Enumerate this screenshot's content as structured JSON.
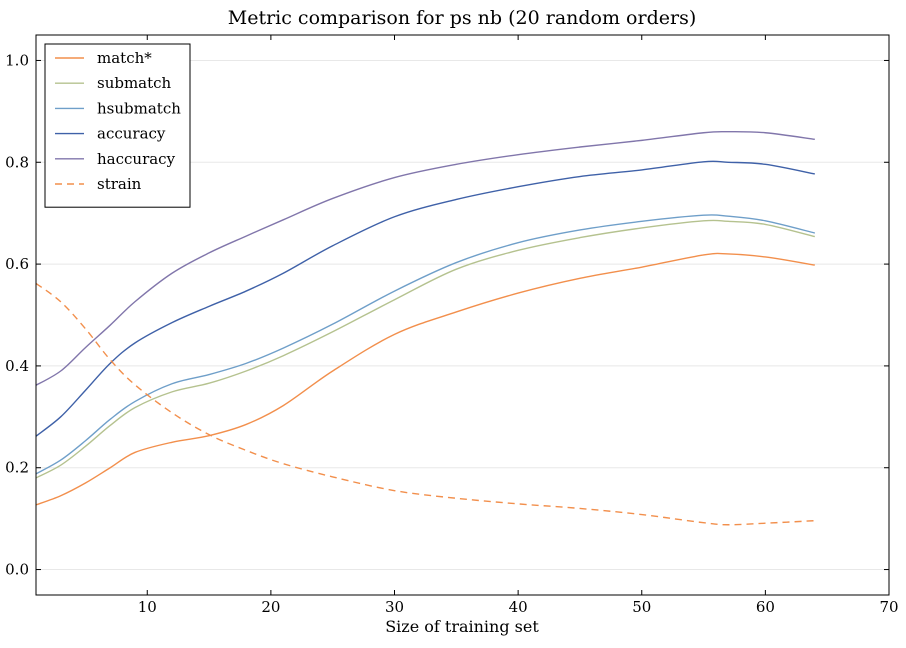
{
  "chart_data": {
    "type": "line",
    "title": "Metric comparison for ps nb (20 random orders)",
    "xlabel": "Size of training set",
    "ylabel": "",
    "xlim": [
      1,
      70
    ],
    "ylim": [
      -0.05,
      1.05
    ],
    "xticks": [
      10,
      20,
      30,
      40,
      50,
      60,
      70
    ],
    "xtick_labels": [
      "10",
      "20",
      "30",
      "40",
      "50",
      "60",
      "70"
    ],
    "yticks": [
      0.0,
      0.2,
      0.4,
      0.6,
      0.8,
      1.0
    ],
    "ytick_labels": [
      "0.0",
      "0.2",
      "0.4",
      "0.6",
      "0.8",
      "1.0"
    ],
    "grid": "horizontal",
    "legend_position": "top-left",
    "x": [
      1,
      3,
      5,
      7,
      9,
      12,
      15,
      18,
      21,
      25,
      30,
      35,
      40,
      45,
      50,
      55,
      57,
      60,
      64
    ],
    "series": [
      {
        "name": "match*",
        "color": "#f28f4c",
        "dash": "solid",
        "values": [
          0.127,
          0.145,
          0.17,
          0.2,
          0.23,
          0.25,
          0.263,
          0.285,
          0.322,
          0.39,
          0.462,
          0.506,
          0.543,
          0.572,
          0.594,
          0.618,
          0.62,
          0.614,
          0.598
        ]
      },
      {
        "name": "submatch",
        "color": "#b5c28f",
        "dash": "solid",
        "values": [
          0.18,
          0.205,
          0.242,
          0.283,
          0.318,
          0.349,
          0.366,
          0.39,
          0.42,
          0.467,
          0.53,
          0.59,
          0.627,
          0.652,
          0.671,
          0.685,
          0.684,
          0.678,
          0.654
        ]
      },
      {
        "name": "hsubmatch",
        "color": "#6f9fc9",
        "dash": "solid",
        "values": [
          0.188,
          0.215,
          0.253,
          0.295,
          0.33,
          0.365,
          0.383,
          0.405,
          0.435,
          0.482,
          0.547,
          0.603,
          0.642,
          0.667,
          0.684,
          0.696,
          0.694,
          0.685,
          0.661
        ]
      },
      {
        "name": "accuracy",
        "color": "#3f61a8",
        "dash": "solid",
        "values": [
          0.262,
          0.3,
          0.352,
          0.405,
          0.445,
          0.485,
          0.517,
          0.547,
          0.582,
          0.636,
          0.693,
          0.727,
          0.752,
          0.772,
          0.785,
          0.801,
          0.8,
          0.796,
          0.777
        ]
      },
      {
        "name": "haccuracy",
        "color": "#8176ab",
        "dash": "solid",
        "values": [
          0.362,
          0.39,
          0.436,
          0.48,
          0.526,
          0.582,
          0.622,
          0.655,
          0.687,
          0.729,
          0.77,
          0.796,
          0.815,
          0.83,
          0.843,
          0.858,
          0.86,
          0.858,
          0.845
        ]
      },
      {
        "name": "strain",
        "color": "#f28f4c",
        "dash": "dashed",
        "values": [
          0.562,
          0.526,
          0.473,
          0.412,
          0.363,
          0.308,
          0.265,
          0.234,
          0.208,
          0.182,
          0.155,
          0.14,
          0.129,
          0.12,
          0.108,
          0.092,
          0.088,
          0.091,
          0.096
        ]
      }
    ]
  }
}
